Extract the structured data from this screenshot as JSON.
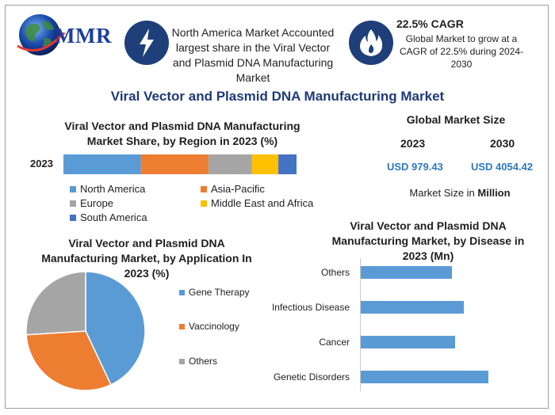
{
  "header": {
    "logo_text": "MMR",
    "info_box": "North America Market Accounted largest share in the Viral Vector and Plasmid DNA Manufacturing Market",
    "cagr_title": "22.5% CAGR",
    "cagr_text": "Global Market to grow at a CAGR of 22.5% during 2024-2030",
    "icon_left": "lightning-icon",
    "icon_right": "flame-icon"
  },
  "main_title": "Viral Vector and Plasmid DNA Manufacturing Market",
  "global_market": {
    "title": "Global Market Size",
    "year_1": "2023",
    "year_2": "2030",
    "value_1": "USD 979.43",
    "value_2": "USD 4054.42",
    "caption_prefix": "Market Size in ",
    "caption_bold": "Million"
  },
  "colors": {
    "blue": "#5b9bd5",
    "orange": "#ed7d31",
    "gray": "#a5a5a5",
    "yellow": "#ffc000",
    "darkblue": "#4472c4",
    "navy": "#1f3f7a",
    "title": "#1f3a78"
  },
  "chart_data": [
    {
      "type": "bar",
      "orientation": "horizontal-stacked",
      "title": "Viral Vector and Plasmid DNA Manufacturing Market Share, by Region in 2023 (%)",
      "categories": [
        "2023"
      ],
      "series": [
        {
          "name": "North America",
          "values": [
            33.2
          ],
          "color": "#5b9bd5"
        },
        {
          "name": "Asia-Pacific",
          "values": [
            29.0
          ],
          "color": "#ed7d31"
        },
        {
          "name": "Europe",
          "values": [
            18.7
          ],
          "color": "#a5a5a5"
        },
        {
          "name": "Middle East and Africa",
          "values": [
            11.3
          ],
          "color": "#ffc000"
        },
        {
          "name": "South America",
          "values": [
            7.8
          ],
          "color": "#4472c4"
        }
      ],
      "legend": "bottom"
    },
    {
      "type": "pie",
      "title": "Viral Vector and Plasmid DNA Manufacturing Market, by Application In 2023 (%)",
      "labels": [
        "Gene Therapy",
        "Vaccinology",
        "Others"
      ],
      "values": [
        43,
        31,
        26
      ],
      "colors": [
        "#5b9bd5",
        "#ed7d31",
        "#a5a5a5"
      ],
      "legend": "right"
    },
    {
      "type": "bar",
      "orientation": "horizontal",
      "title": "Viral Vector and Plasmid DNA Manufacturing Market, by Disease in 2023 (Mn)",
      "categories": [
        "Others",
        "Infectious Disease",
        "Cancer",
        "Genetic Disorders"
      ],
      "values": [
        114,
        128,
        118,
        159
      ],
      "xlim": [
        0,
        170
      ],
      "color": "#5b9bd5"
    }
  ]
}
